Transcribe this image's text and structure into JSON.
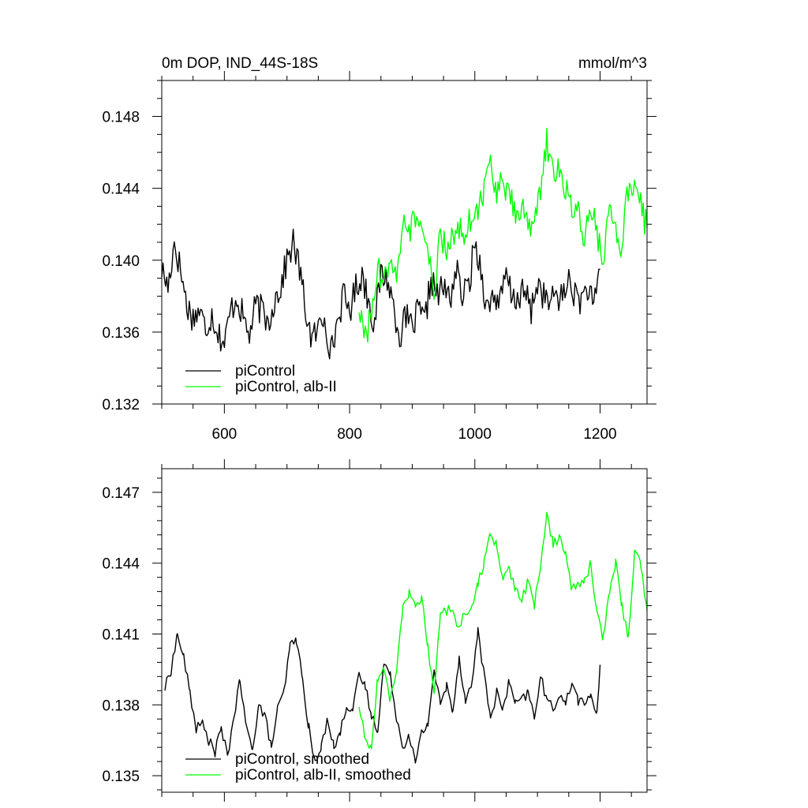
{
  "colors": {
    "black": "#000000",
    "green": "#00ff00",
    "axis": "#000000"
  },
  "chart_data": [
    {
      "type": "line",
      "title": "0m DOP, IND_44S-18S",
      "units": "mmol/m^3",
      "xlim": [
        500,
        1275
      ],
      "ylim": [
        0.132,
        0.15
      ],
      "xticks": [
        600,
        800,
        1000,
        1200
      ],
      "xtick_labels": [
        "600",
        "800",
        "1000",
        "1200"
      ],
      "yticks": [
        0.132,
        0.136,
        0.14,
        0.144,
        0.148
      ],
      "ytick_labels": [
        "0.132",
        "0.136",
        "0.140",
        "0.144",
        "0.148"
      ],
      "legend_position": "bottom-left",
      "series": [
        {
          "name": "piControl",
          "color": "#000000",
          "x": [
            500,
            510,
            520,
            530,
            540,
            550,
            560,
            570,
            580,
            590,
            600,
            610,
            620,
            630,
            640,
            650,
            660,
            670,
            680,
            690,
            700,
            710,
            720,
            730,
            740,
            750,
            760,
            770,
            780,
            790,
            800,
            810,
            820,
            830,
            840,
            850,
            860,
            870,
            880,
            890,
            900,
            910,
            920,
            930,
            940,
            950,
            960,
            970,
            980,
            990,
            1000,
            1010,
            1020,
            1030,
            1040,
            1050,
            1060,
            1070,
            1080,
            1090,
            1100,
            1110,
            1120,
            1130,
            1140,
            1150,
            1160,
            1170,
            1180,
            1190,
            1200
          ],
          "y": [
            0.1395,
            0.1385,
            0.141,
            0.1395,
            0.1375,
            0.1368,
            0.1372,
            0.1362,
            0.137,
            0.136,
            0.1353,
            0.1372,
            0.138,
            0.1368,
            0.1358,
            0.1375,
            0.1372,
            0.1365,
            0.1378,
            0.1385,
            0.14,
            0.141,
            0.1395,
            0.1372,
            0.1355,
            0.1362,
            0.137,
            0.1348,
            0.1365,
            0.138,
            0.1372,
            0.1385,
            0.1392,
            0.1378,
            0.1365,
            0.1392,
            0.139,
            0.1375,
            0.1358,
            0.1368,
            0.1362,
            0.1372,
            0.1365,
            0.139,
            0.138,
            0.1385,
            0.1378,
            0.1395,
            0.138,
            0.1385,
            0.141,
            0.1395,
            0.1372,
            0.1382,
            0.1375,
            0.1392,
            0.1378,
            0.138,
            0.1382,
            0.1372,
            0.1388,
            0.138,
            0.1375,
            0.1382,
            0.1378,
            0.139,
            0.138,
            0.1378,
            0.1385,
            0.1372,
            0.1395
          ]
        },
        {
          "name": "piControl, alb-II",
          "color": "#00ff00",
          "x": [
            815,
            825,
            835,
            845,
            855,
            865,
            875,
            885,
            895,
            905,
            915,
            925,
            935,
            945,
            955,
            965,
            975,
            985,
            995,
            1005,
            1015,
            1025,
            1035,
            1045,
            1055,
            1065,
            1075,
            1085,
            1095,
            1105,
            1115,
            1125,
            1135,
            1145,
            1155,
            1165,
            1175,
            1185,
            1195,
            1205,
            1215,
            1225,
            1235,
            1245,
            1255,
            1265,
            1275
          ],
          "y": [
            0.1375,
            0.1355,
            0.137,
            0.1395,
            0.1385,
            0.1405,
            0.1395,
            0.142,
            0.1415,
            0.1425,
            0.1418,
            0.14,
            0.1385,
            0.1412,
            0.1405,
            0.1415,
            0.142,
            0.1415,
            0.1425,
            0.1428,
            0.144,
            0.1455,
            0.1438,
            0.1442,
            0.1435,
            0.1425,
            0.1432,
            0.1422,
            0.1418,
            0.144,
            0.1465,
            0.1452,
            0.1448,
            0.144,
            0.143,
            0.1425,
            0.141,
            0.1432,
            0.1415,
            0.14,
            0.1425,
            0.1418,
            0.1408,
            0.144,
            0.1445,
            0.143,
            0.1418
          ]
        }
      ]
    },
    {
      "type": "line",
      "xlim": [
        500,
        1275
      ],
      "ylim": [
        0.1343,
        0.148
      ],
      "xticks": [
        600,
        800,
        1000,
        1200
      ],
      "xtick_labels": [],
      "yticks": [
        0.135,
        0.138,
        0.141,
        0.144,
        0.147
      ],
      "ytick_labels": [
        "0.135",
        "0.138",
        "0.141",
        "0.144",
        "0.147"
      ],
      "legend_position": "bottom-left",
      "series": [
        {
          "name": "piControl, smoothed",
          "color": "#000000",
          "x": [
            505,
            515,
            525,
            535,
            545,
            555,
            565,
            575,
            585,
            595,
            605,
            615,
            625,
            635,
            645,
            655,
            665,
            675,
            685,
            695,
            705,
            715,
            725,
            735,
            745,
            755,
            765,
            775,
            785,
            795,
            805,
            815,
            825,
            835,
            845,
            855,
            865,
            875,
            885,
            895,
            905,
            915,
            925,
            935,
            945,
            955,
            965,
            975,
            985,
            995,
            1005,
            1015,
            1025,
            1035,
            1045,
            1055,
            1065,
            1075,
            1085,
            1095,
            1105,
            1115,
            1125,
            1135,
            1145,
            1155,
            1165,
            1175,
            1185,
            1195,
            1200
          ],
          "y": [
            0.1387,
            0.1395,
            0.141,
            0.14,
            0.1385,
            0.137,
            0.1372,
            0.1365,
            0.136,
            0.137,
            0.1358,
            0.1375,
            0.139,
            0.137,
            0.1362,
            0.138,
            0.1375,
            0.1362,
            0.1378,
            0.1385,
            0.1405,
            0.1408,
            0.139,
            0.137,
            0.1355,
            0.1362,
            0.1375,
            0.1362,
            0.1368,
            0.138,
            0.1378,
            0.1392,
            0.1388,
            0.1375,
            0.137,
            0.1398,
            0.1392,
            0.1375,
            0.1362,
            0.1368,
            0.1355,
            0.1368,
            0.1372,
            0.1395,
            0.138,
            0.1388,
            0.1378,
            0.14,
            0.1382,
            0.1388,
            0.1412,
            0.1392,
            0.1375,
            0.1385,
            0.1378,
            0.139,
            0.138,
            0.1382,
            0.1385,
            0.1375,
            0.1392,
            0.1382,
            0.1378,
            0.1385,
            0.138,
            0.139,
            0.1382,
            0.138,
            0.1385,
            0.1375,
            0.1397
          ]
        },
        {
          "name": "piControl, alb-II, smoothed",
          "color": "#00ff00",
          "x": [
            815,
            825,
            835,
            845,
            855,
            865,
            875,
            885,
            895,
            905,
            915,
            925,
            935,
            945,
            955,
            965,
            975,
            985,
            995,
            1005,
            1015,
            1025,
            1035,
            1045,
            1055,
            1065,
            1075,
            1085,
            1095,
            1105,
            1115,
            1125,
            1135,
            1145,
            1155,
            1165,
            1175,
            1185,
            1195,
            1205,
            1215,
            1225,
            1235,
            1245,
            1255,
            1265,
            1275
          ],
          "y": [
            0.138,
            0.1365,
            0.1362,
            0.1392,
            0.1395,
            0.1382,
            0.1395,
            0.142,
            0.1428,
            0.1422,
            0.1425,
            0.1405,
            0.1385,
            0.1418,
            0.142,
            0.142,
            0.1412,
            0.142,
            0.142,
            0.1432,
            0.144,
            0.1452,
            0.1448,
            0.1432,
            0.1438,
            0.1428,
            0.1425,
            0.1432,
            0.1422,
            0.1438,
            0.1462,
            0.1448,
            0.145,
            0.1445,
            0.1428,
            0.1432,
            0.1432,
            0.144,
            0.142,
            0.1408,
            0.1428,
            0.144,
            0.1422,
            0.1408,
            0.1445,
            0.144,
            0.142
          ]
        }
      ]
    }
  ]
}
